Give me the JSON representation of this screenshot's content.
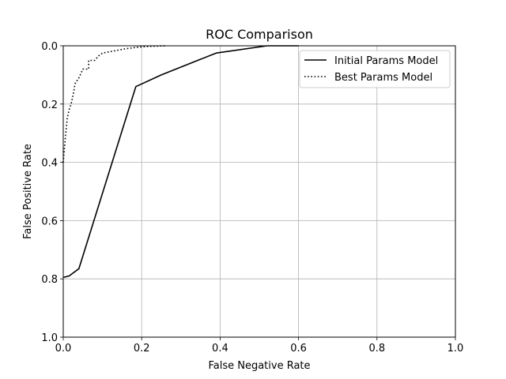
{
  "chart_data": {
    "type": "line",
    "title": "ROC Comparison",
    "xlabel": "False Negative Rate",
    "ylabel": "False Positive Rate",
    "xlim": [
      0.0,
      1.0
    ],
    "ylim": [
      0.0,
      1.0
    ],
    "y_inverted": true,
    "grid": true,
    "legend_placement": "top-right",
    "x_ticks": [
      "0.0",
      "0.2",
      "0.4",
      "0.6",
      "0.8",
      "1.0"
    ],
    "y_ticks": [
      "0.0",
      "0.2",
      "0.4",
      "0.6",
      "0.8",
      "1.0"
    ],
    "series": [
      {
        "name": "Initial Params Model",
        "style": "solid",
        "color": "#000000",
        "x": [
          0.0,
          0.015,
          0.04,
          0.185,
          0.25,
          0.39,
          0.52,
          0.6
        ],
        "y": [
          0.795,
          0.79,
          0.765,
          0.14,
          0.1,
          0.025,
          0.0,
          0.0
        ]
      },
      {
        "name": "Best Params Model",
        "style": "dotted",
        "color": "#000000",
        "x": [
          0.0,
          0.005,
          0.01,
          0.015,
          0.02,
          0.025,
          0.03,
          0.04,
          0.04,
          0.05,
          0.065,
          0.065,
          0.08,
          0.09,
          0.1,
          0.12,
          0.14,
          0.16,
          0.19,
          0.22,
          0.26
        ],
        "y": [
          0.4,
          0.32,
          0.25,
          0.22,
          0.2,
          0.17,
          0.13,
          0.11,
          0.11,
          0.08,
          0.08,
          0.05,
          0.05,
          0.035,
          0.025,
          0.02,
          0.015,
          0.01,
          0.005,
          0.002,
          0.0
        ]
      }
    ]
  }
}
